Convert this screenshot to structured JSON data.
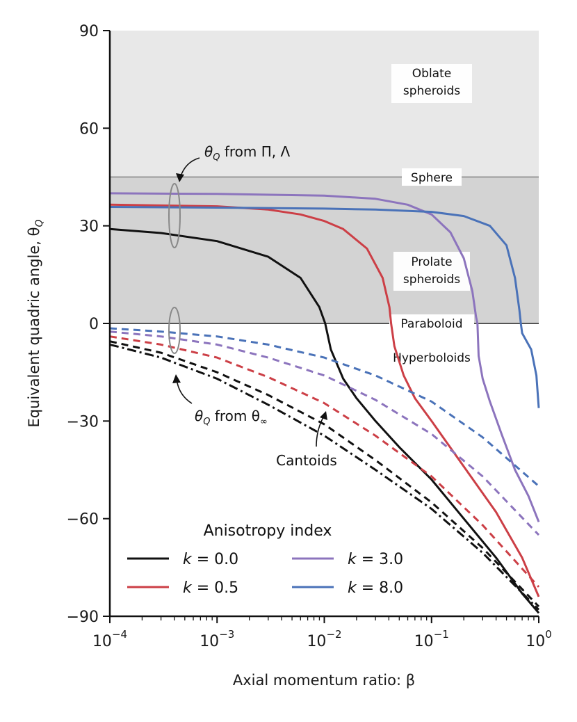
{
  "chart_data": {
    "type": "line",
    "xscale": "log",
    "xlim": [
      0.0001,
      1
    ],
    "ylim": [
      -90,
      90
    ],
    "xlabel": "Axial momentum ratio: β",
    "ylabel": "Equivalent quadric angle, θ",
    "ylabel_sub": "Q",
    "yticks": [
      "90",
      "60",
      "30",
      "0",
      "−30",
      "−60",
      "−90"
    ],
    "ytick_values": [
      90,
      60,
      30,
      0,
      -30,
      -60,
      -90
    ],
    "xticks": [
      {
        "base": "10",
        "exp": "−4",
        "value": 0.0001
      },
      {
        "base": "10",
        "exp": "−3",
        "value": 0.001
      },
      {
        "base": "10",
        "exp": "−2",
        "value": 0.01
      },
      {
        "base": "10",
        "exp": "−1",
        "value": 0.1
      },
      {
        "base": "10",
        "exp": "0",
        "value": 1
      }
    ],
    "regions": [
      {
        "name": "oblate",
        "label_lines": [
          "Oblate",
          "spheroids"
        ],
        "y_range": [
          45,
          90
        ],
        "color": "#e8e8e8"
      },
      {
        "name": "prolate",
        "label_lines": [
          "Prolate",
          "spheroids"
        ],
        "y_range": [
          0,
          45
        ],
        "color": "#d3d3d3"
      }
    ],
    "boundary_labels": [
      {
        "name": "sphere",
        "text": "Sphere",
        "y": 45
      },
      {
        "name": "paraboloid",
        "text": "Paraboloid",
        "y": 0
      },
      {
        "name": "hyperboloids",
        "text": "Hyperboloids",
        "y": -11
      }
    ],
    "series": [
      {
        "name": "k = 0.0",
        "k": "0.0",
        "color": "#111111",
        "solid": [
          [
            0.0001,
            29
          ],
          [
            0.0003,
            27.8
          ],
          [
            0.001,
            25.3
          ],
          [
            0.003,
            20.5
          ],
          [
            0.006,
            14
          ],
          [
            0.009,
            5
          ],
          [
            0.0102,
            0
          ],
          [
            0.0115,
            -8
          ],
          [
            0.015,
            -17
          ],
          [
            0.02,
            -23
          ],
          [
            0.03,
            -30
          ],
          [
            0.05,
            -38
          ],
          [
            0.1,
            -48
          ],
          [
            0.2,
            -60
          ],
          [
            0.4,
            -72
          ],
          [
            0.7,
            -83
          ],
          [
            1.0,
            -89
          ]
        ],
        "dashed": [
          [
            0.0001,
            -5.5
          ],
          [
            0.0003,
            -9
          ],
          [
            0.001,
            -15
          ],
          [
            0.003,
            -22
          ],
          [
            0.01,
            -31
          ],
          [
            0.03,
            -42
          ],
          [
            0.1,
            -55
          ],
          [
            0.3,
            -69
          ],
          [
            1.0,
            -87
          ]
        ],
        "dashdot": [
          [
            0.0001,
            -6.5
          ],
          [
            0.0003,
            -10.5
          ],
          [
            0.001,
            -17
          ],
          [
            0.003,
            -25
          ],
          [
            0.01,
            -34.5
          ],
          [
            0.03,
            -45
          ],
          [
            0.1,
            -57
          ],
          [
            0.3,
            -70.5
          ],
          [
            1.0,
            -88
          ]
        ]
      },
      {
        "name": "k = 0.5",
        "k": "0.5",
        "color": "#cc3f46",
        "solid": [
          [
            0.0001,
            36.5
          ],
          [
            0.001,
            36
          ],
          [
            0.003,
            35
          ],
          [
            0.006,
            33.5
          ],
          [
            0.01,
            31.5
          ],
          [
            0.015,
            29
          ],
          [
            0.025,
            23
          ],
          [
            0.035,
            14
          ],
          [
            0.0405,
            5
          ],
          [
            0.042,
            0
          ],
          [
            0.045,
            -7
          ],
          [
            0.055,
            -16
          ],
          [
            0.07,
            -23
          ],
          [
            0.1,
            -30
          ],
          [
            0.2,
            -44
          ],
          [
            0.4,
            -58
          ],
          [
            0.7,
            -72
          ],
          [
            1.0,
            -84
          ]
        ],
        "dashed": [
          [
            0.0001,
            -4
          ],
          [
            0.0003,
            -6.5
          ],
          [
            0.001,
            -10.5
          ],
          [
            0.003,
            -16.5
          ],
          [
            0.01,
            -24.5
          ],
          [
            0.03,
            -34.5
          ],
          [
            0.1,
            -47
          ],
          [
            0.3,
            -62
          ],
          [
            1.0,
            -81
          ]
        ]
      },
      {
        "name": "k = 3.0",
        "k": "3.0",
        "color": "#8c74bd",
        "solid": [
          [
            0.0001,
            40
          ],
          [
            0.001,
            39.8
          ],
          [
            0.01,
            39.3
          ],
          [
            0.03,
            38.3
          ],
          [
            0.06,
            36.5
          ],
          [
            0.1,
            33.5
          ],
          [
            0.15,
            28
          ],
          [
            0.2,
            20
          ],
          [
            0.24,
            10
          ],
          [
            0.26,
            2
          ],
          [
            0.268,
            0
          ],
          [
            0.275,
            -10
          ],
          [
            0.3,
            -17
          ],
          [
            0.35,
            -24
          ],
          [
            0.45,
            -34
          ],
          [
            0.6,
            -45
          ],
          [
            0.8,
            -53
          ],
          [
            1.0,
            -61
          ]
        ],
        "dashed": [
          [
            0.0001,
            -2.5
          ],
          [
            0.0003,
            -4
          ],
          [
            0.001,
            -6.5
          ],
          [
            0.003,
            -10.5
          ],
          [
            0.01,
            -16
          ],
          [
            0.03,
            -23.5
          ],
          [
            0.1,
            -34
          ],
          [
            0.3,
            -47
          ],
          [
            1.0,
            -65
          ]
        ]
      },
      {
        "name": "k = 8.0",
        "k": "8.0",
        "color": "#4a72b8",
        "solid": [
          [
            0.0001,
            35.8
          ],
          [
            0.001,
            35.6
          ],
          [
            0.01,
            35.3
          ],
          [
            0.03,
            35
          ],
          [
            0.1,
            34.3
          ],
          [
            0.2,
            33
          ],
          [
            0.35,
            30
          ],
          [
            0.5,
            24
          ],
          [
            0.6,
            14
          ],
          [
            0.66,
            4
          ],
          [
            0.68,
            0
          ],
          [
            0.7,
            -3
          ],
          [
            0.85,
            -8
          ],
          [
            0.95,
            -16
          ],
          [
            1.0,
            -26
          ]
        ],
        "dashed": [
          [
            0.0001,
            -1.5
          ],
          [
            0.0003,
            -2.5
          ],
          [
            0.001,
            -4
          ],
          [
            0.003,
            -6.5
          ],
          [
            0.01,
            -10.5
          ],
          [
            0.03,
            -16
          ],
          [
            0.1,
            -24
          ],
          [
            0.3,
            -35
          ],
          [
            1.0,
            -50
          ]
        ]
      }
    ],
    "annotations": [
      {
        "name": "from-pi-lambda",
        "prefix": "θ",
        "sub": "Q",
        "suffix": " from Π, Λ"
      },
      {
        "name": "from-theta-inf",
        "prefix": "θ",
        "sub": "Q",
        "mid": " from θ",
        "sub2": "∞"
      },
      {
        "name": "cantoids",
        "text": "Cantoids"
      }
    ],
    "legend": {
      "title": "Anisotropy index",
      "placement": "lower-left",
      "entries": [
        {
          "k_symbol": "k",
          "eq": " = 0.0",
          "color": "#111111"
        },
        {
          "k_symbol": "k",
          "eq": " = 3.0",
          "color": "#8c74bd"
        },
        {
          "k_symbol": "k",
          "eq": " = 0.5",
          "color": "#cc3f46"
        },
        {
          "k_symbol": "k",
          "eq": " = 8.0",
          "color": "#4a72b8"
        }
      ]
    }
  }
}
